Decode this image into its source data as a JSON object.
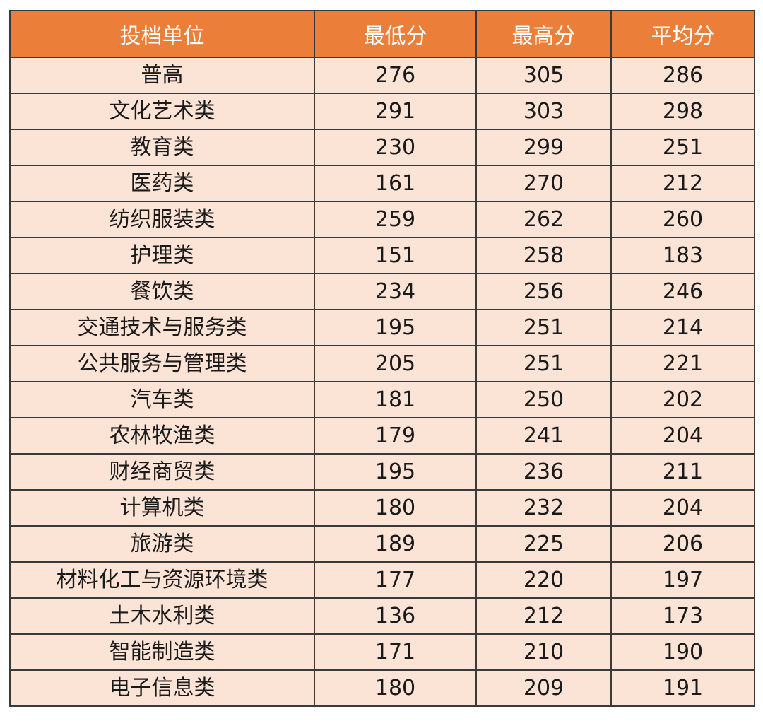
{
  "colors": {
    "header_bg": "#EB7F3A",
    "header_text": "#FFFFFF",
    "row_bg": "#FBE3D6",
    "cell_text": "#1a1a1a",
    "border": "#3a3a3a"
  },
  "table": {
    "headers": [
      "投档单位",
      "最低分",
      "最高分",
      "平均分"
    ],
    "rows": [
      [
        "普高",
        "276",
        "305",
        "286"
      ],
      [
        "文化艺术类",
        "291",
        "303",
        "298"
      ],
      [
        "教育类",
        "230",
        "299",
        "251"
      ],
      [
        "医药类",
        "161",
        "270",
        "212"
      ],
      [
        "纺织服装类",
        "259",
        "262",
        "260"
      ],
      [
        "护理类",
        "151",
        "258",
        "183"
      ],
      [
        "餐饮类",
        "234",
        "256",
        "246"
      ],
      [
        "交通技术与服务类",
        "195",
        "251",
        "214"
      ],
      [
        "公共服务与管理类",
        "205",
        "251",
        "221"
      ],
      [
        "汽车类",
        "181",
        "250",
        "202"
      ],
      [
        "农林牧渔类",
        "179",
        "241",
        "204"
      ],
      [
        "财经商贸类",
        "195",
        "236",
        "211"
      ],
      [
        "计算机类",
        "180",
        "232",
        "204"
      ],
      [
        "旅游类",
        "189",
        "225",
        "206"
      ],
      [
        "材料化工与资源环境类",
        "177",
        "220",
        "197"
      ],
      [
        "土木水利类",
        "136",
        "212",
        "173"
      ],
      [
        "智能制造类",
        "171",
        "210",
        "190"
      ],
      [
        "电子信息类",
        "180",
        "209",
        "191"
      ]
    ]
  }
}
